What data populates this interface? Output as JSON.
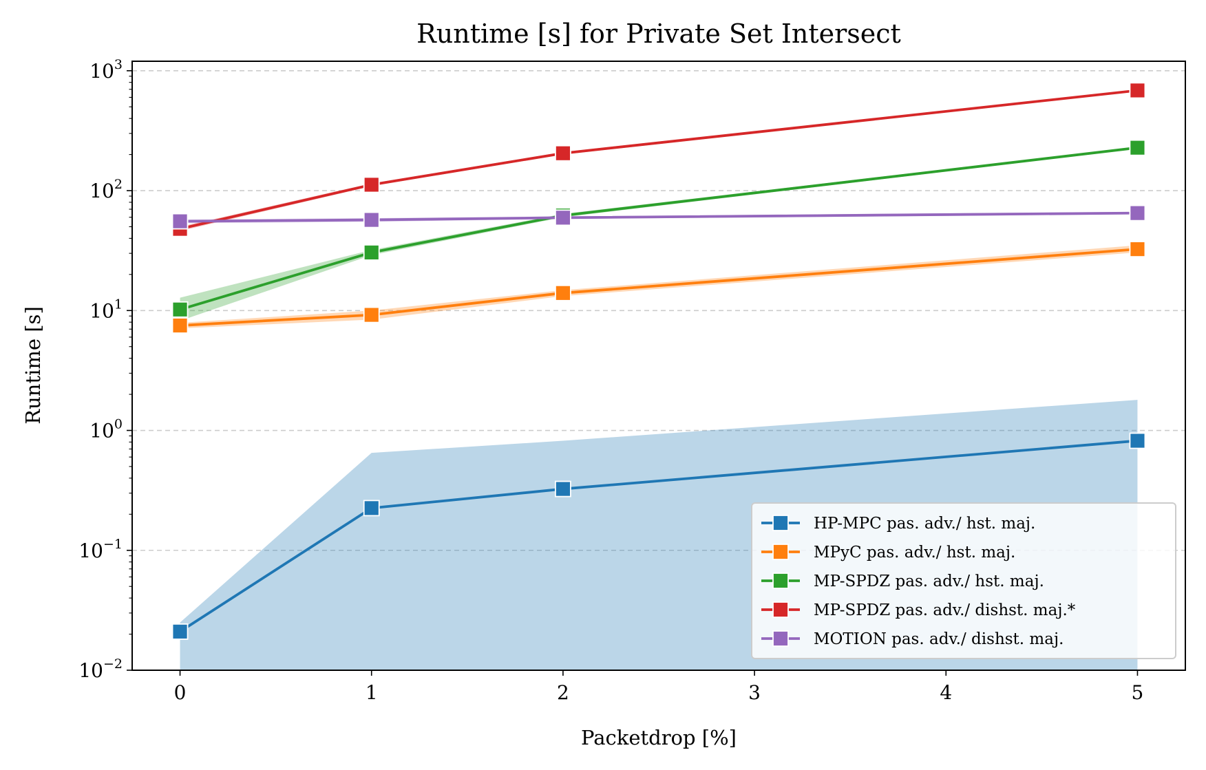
{
  "chart_data": {
    "type": "line",
    "title": "Runtime [s] for Private Set Intersect",
    "xlabel": "Packetdrop [%]",
    "ylabel": "Runtime [s]",
    "yscale": "log",
    "xlim": [
      -0.25,
      5.25
    ],
    "ylim": [
      0.01,
      1200
    ],
    "xticks": [
      0,
      1,
      2,
      3,
      4,
      5
    ],
    "yticks": [
      {
        "value": 0.01,
        "base": "10",
        "exp": "−2"
      },
      {
        "value": 0.1,
        "base": "10",
        "exp": "−1"
      },
      {
        "value": 1,
        "base": "10",
        "exp": "0"
      },
      {
        "value": 10,
        "base": "10",
        "exp": "1"
      },
      {
        "value": 100,
        "base": "10",
        "exp": "2"
      },
      {
        "value": 1000,
        "base": "10",
        "exp": "3"
      }
    ],
    "grid": "y-dashed",
    "legend_position": "lower-right",
    "series": [
      {
        "name": "HP-MPC pas. adv./ hst. maj.",
        "color": "#1f77b4",
        "x": [
          0,
          1,
          2,
          5
        ],
        "y": [
          0.021,
          0.225,
          0.325,
          0.82
        ],
        "ci_low": [
          0.005,
          0.005,
          0.005,
          0.005
        ],
        "ci_high": [
          0.025,
          0.65,
          0.82,
          1.8
        ]
      },
      {
        "name": "MPyC pas. adv./ hst. maj.",
        "color": "#ff7f0e",
        "x": [
          0,
          1,
          2,
          5
        ],
        "y": [
          7.5,
          9.2,
          14.0,
          32.5
        ],
        "ci_low": [
          7.1,
          8.4,
          13.2,
          30.5
        ],
        "ci_high": [
          7.9,
          10.0,
          14.8,
          35.0
        ]
      },
      {
        "name": "MP-SPDZ pas. adv./ hst. maj.",
        "color": "#2ca02c",
        "x": [
          0,
          1,
          2,
          5
        ],
        "y": [
          10.2,
          30.5,
          62.0,
          228.0
        ],
        "ci_low": [
          8.2,
          29.0,
          60.0,
          224.0
        ],
        "ci_high": [
          12.8,
          32.0,
          64.0,
          232.0
        ]
      },
      {
        "name": "MP-SPDZ pas. adv./ dishst. maj.*",
        "color": "#d62728",
        "x": [
          0,
          1,
          2,
          5
        ],
        "y": [
          48.0,
          112.0,
          205.0,
          685.0
        ],
        "ci_low": [
          46.0,
          109.0,
          200.0,
          675.0
        ],
        "ci_high": [
          50.0,
          115.0,
          210.0,
          695.0
        ]
      },
      {
        "name": "MOTION pas. adv./ dishst. maj.",
        "color": "#9467bd",
        "x": [
          0,
          1,
          2,
          5
        ],
        "y": [
          55.5,
          57.0,
          59.5,
          65.0
        ],
        "ci_low": [
          53.5,
          55.0,
          58.0,
          63.5
        ],
        "ci_high": [
          57.5,
          59.0,
          61.0,
          66.5
        ]
      }
    ]
  }
}
